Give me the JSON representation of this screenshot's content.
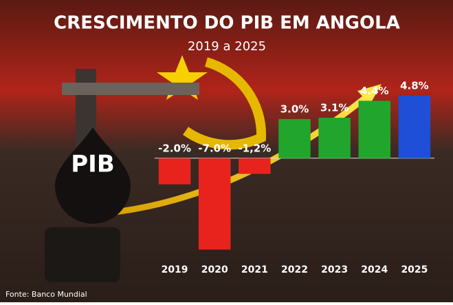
{
  "chart_data": {
    "type": "bar",
    "title": "CRESCIMENTO DO PIB EM ANGOLA",
    "subtitle": "2019 a 2025",
    "categories": [
      "2019",
      "2020",
      "2021",
      "2022",
      "2023",
      "2024",
      "2025"
    ],
    "values": [
      -2.0,
      -7.0,
      -1.2,
      3.0,
      3.1,
      4.4,
      4.8
    ],
    "value_labels": [
      "-2.0%",
      "-7.0%",
      "-1,2%",
      "3.0%",
      "3.1%",
      "4.4%",
      "4.8%"
    ],
    "colors": [
      "#e8231e",
      "#e8231e",
      "#e8231e",
      "#22a52c",
      "#22a52c",
      "#22a52c",
      "#1f4fd6"
    ],
    "ylim": [
      -7.5,
      5
    ],
    "annotation": "PIB",
    "source": "Fonte: Banco Mundial"
  }
}
